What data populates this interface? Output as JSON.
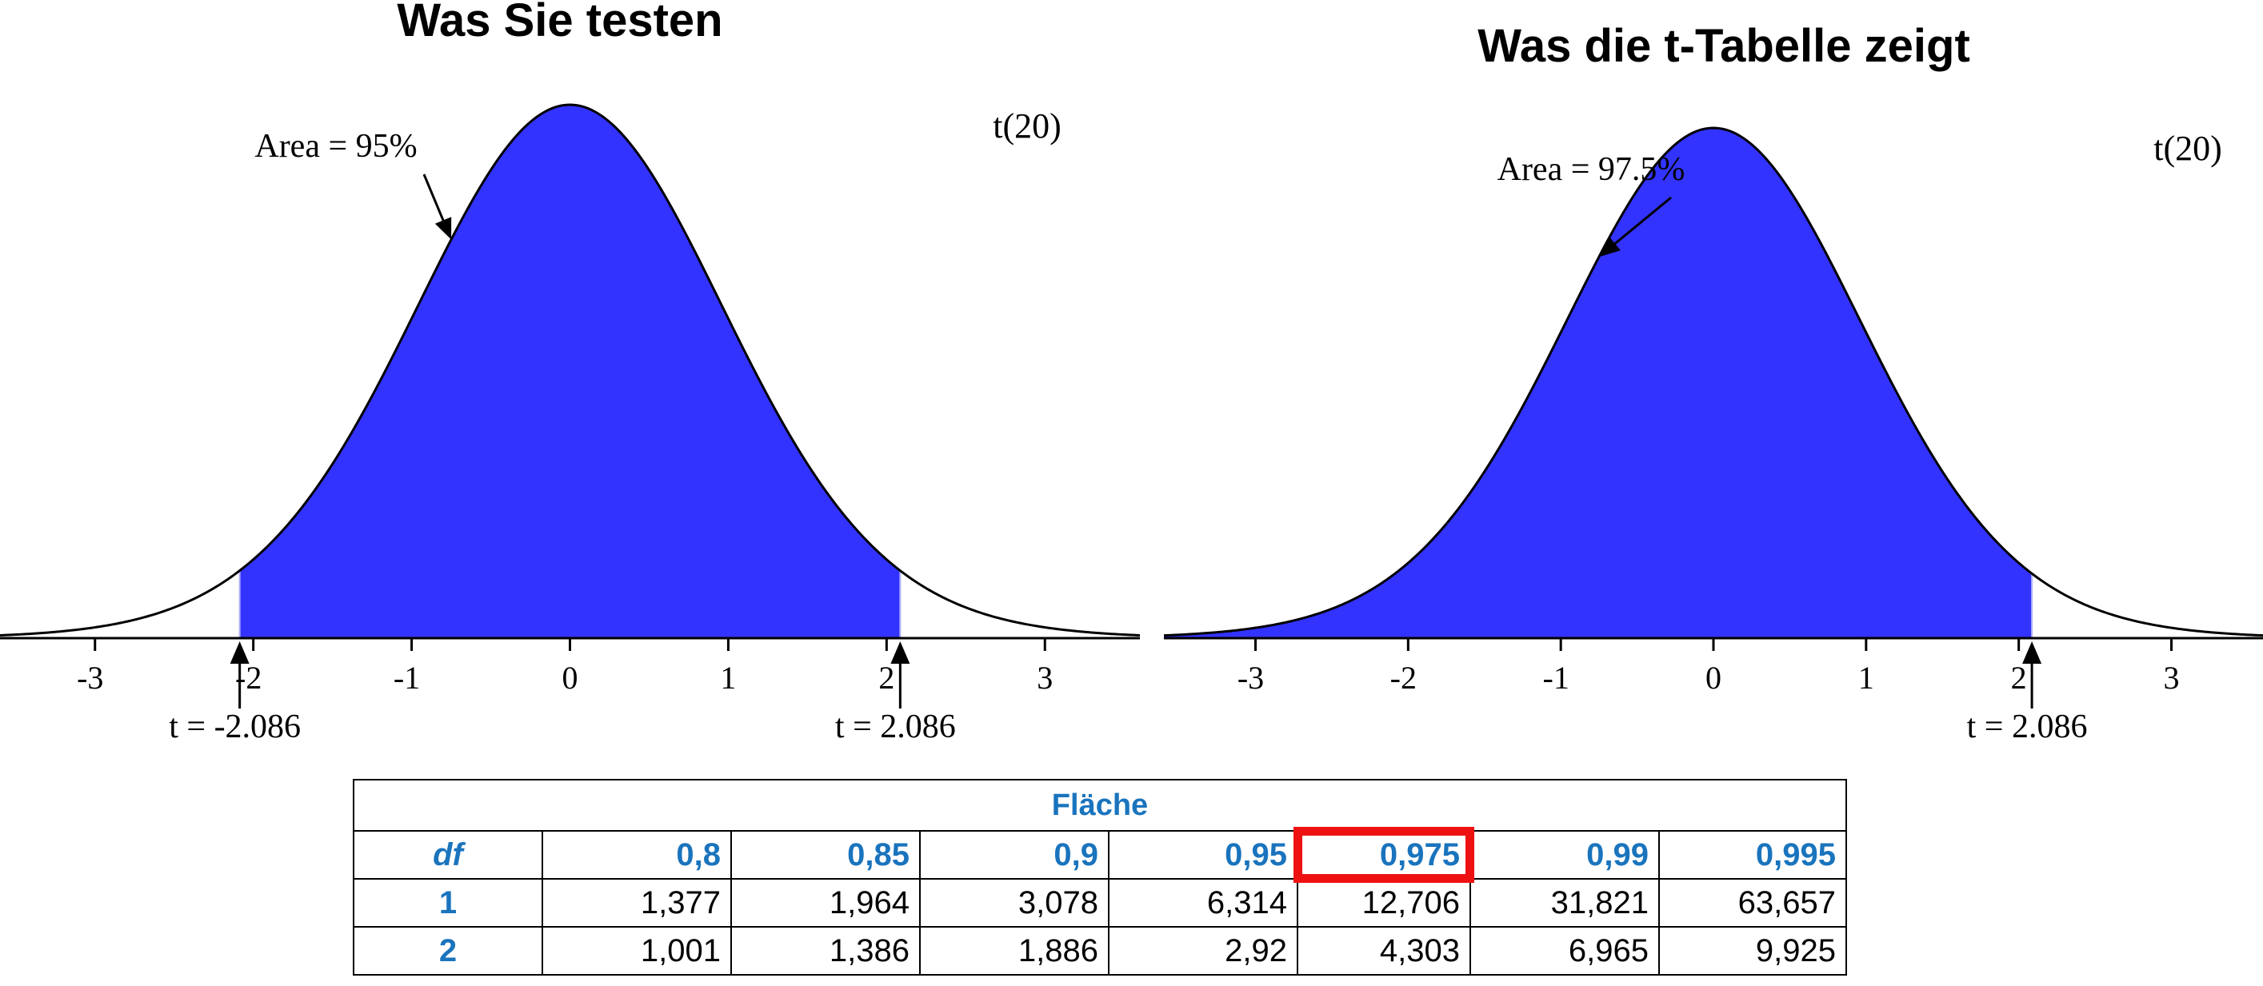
{
  "titles": {
    "left": "Was Sie testen",
    "right": "Was die t-Tabelle zeigt"
  },
  "chart_data": [
    {
      "type": "area",
      "distribution": "t",
      "df": 20,
      "dist_label": "t(20)",
      "title": "Was Sie testen",
      "xlim": [
        -3.6,
        3.6
      ],
      "xticks": [
        -3,
        -2,
        -1,
        0,
        1,
        2,
        3
      ],
      "shaded_from": -2.086,
      "shaded_to": 2.086,
      "area_label": "Area = 95%",
      "area_label_target_x": -0.75,
      "critical_labels": [
        {
          "x": -2.086,
          "text": "t = -2.086"
        },
        {
          "x": 2.086,
          "text": "t = 2.086"
        }
      ],
      "fill_color": "#3333ff"
    },
    {
      "type": "area",
      "distribution": "t",
      "df": 20,
      "dist_label": "t(20)",
      "title": "Was die t-Tabelle zeigt",
      "xlim": [
        -3.6,
        3.6
      ],
      "xticks": [
        -3,
        -2,
        -1,
        0,
        1,
        2,
        3
      ],
      "shaded_from": -3.6,
      "shaded_to": 2.086,
      "area_label": "Area = 97.5%",
      "area_label_target_x": -0.75,
      "critical_labels": [
        {
          "x": 2.086,
          "text": "t = 2.086"
        }
      ],
      "fill_color": "#3333ff"
    },
    {
      "type": "table",
      "caption": "Fläche",
      "columns": [
        "df",
        "0,8",
        "0,85",
        "0,9",
        "0,95",
        "0,975",
        "0,99",
        "0,995"
      ],
      "highlighted_column": "0,975",
      "highlight_color": "#ee1111",
      "rows": [
        [
          "1",
          "1,377",
          "1,964",
          "3,078",
          "6,314",
          "12,706",
          "31,821",
          "63,657"
        ],
        [
          "2",
          "1,001",
          "1,386",
          "1,886",
          "2,92",
          "4,303",
          "6,965",
          "9,925"
        ]
      ]
    }
  ]
}
